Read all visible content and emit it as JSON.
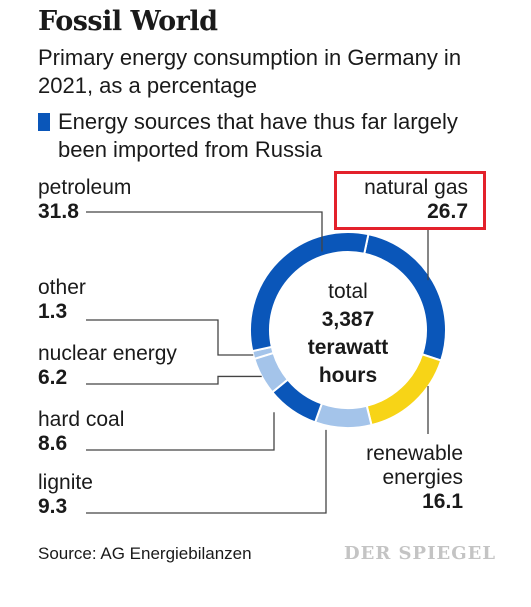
{
  "title": "Fossil World",
  "subtitle": "Primary energy consumption in Germany in 2021, as a percentage",
  "legend": {
    "text": "Energy sources that have thus far largely been imported from Russia",
    "color": "#0a56b9"
  },
  "center": {
    "line1": "total",
    "line2": "3,387",
    "line3": "terawatt",
    "line4": "hours"
  },
  "source": "Source: AG Energiebilanzen",
  "brand": "DER SPIEGEL",
  "colors": {
    "imported": "#0a56b9",
    "other_fossil_light": "#a4c4ea",
    "renewable": "#f7d417",
    "highlight_border": "#e3212b",
    "leader_line": "#444444"
  },
  "chart_data": {
    "type": "pie",
    "unit": "percent",
    "title": "Fossil World",
    "total": "3,387 terawatt hours",
    "slices": [
      {
        "label": "natural gas",
        "value": 26.7,
        "value_text": "26.7",
        "imported": true,
        "color": "#0a56b9"
      },
      {
        "label": "renewable energies",
        "value": 16.1,
        "value_text": "16.1",
        "imported": false,
        "color": "#f7d417"
      },
      {
        "label": "lignite",
        "value": 9.3,
        "value_text": "9.3",
        "imported": false,
        "color": "#a4c4ea"
      },
      {
        "label": "hard coal",
        "value": 8.6,
        "value_text": "8.6",
        "imported": true,
        "color": "#0a56b9"
      },
      {
        "label": "nuclear energy",
        "value": 6.2,
        "value_text": "6.2",
        "imported": false,
        "color": "#a4c4ea"
      },
      {
        "label": "other",
        "value": 1.3,
        "value_text": "1.3",
        "imported": false,
        "color": "#a4c4ea"
      },
      {
        "label": "petroleum",
        "value": 31.8,
        "value_text": "31.8",
        "imported": true,
        "color": "#0a56b9"
      }
    ],
    "highlighted": "natural gas"
  }
}
